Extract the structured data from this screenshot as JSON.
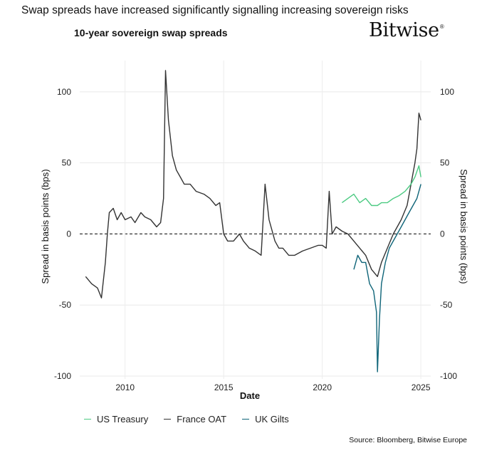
{
  "headline": "Swap spreads have increased significantly signalling increasing sovereign risks",
  "subtitle": "10-year sovereign swap spreads",
  "brand": "Bitwise",
  "brand_mark": "®",
  "source": "Source: Bloomberg, Bitwise Europe",
  "chart_data": {
    "type": "line",
    "title": "10-year sovereign swap spreads",
    "xlabel": "Date",
    "ylabel": "Spread in basis points (bps)",
    "ylabel_right": "Spread in basis points (bps)",
    "xlim": [
      2007.7,
      2025.5
    ],
    "ylim": [
      -102,
      122
    ],
    "x_ticks": [
      2010,
      2015,
      2020,
      2025
    ],
    "y_ticks": [
      -100,
      -50,
      0,
      50,
      100
    ],
    "zero_line": "dashed",
    "grid": true,
    "legend_position": "bottom",
    "series": [
      {
        "name": "France OAT",
        "color": "#333333",
        "x": [
          2008.0,
          2008.3,
          2008.6,
          2008.8,
          2009.0,
          2009.1,
          2009.2,
          2009.4,
          2009.6,
          2009.8,
          2010.0,
          2010.3,
          2010.5,
          2010.8,
          2011.0,
          2011.3,
          2011.6,
          2011.8,
          2011.95,
          2012.05,
          2012.2,
          2012.4,
          2012.6,
          2012.8,
          2013.0,
          2013.3,
          2013.6,
          2014.0,
          2014.3,
          2014.6,
          2014.8,
          2015.0,
          2015.2,
          2015.5,
          2015.8,
          2016.0,
          2016.3,
          2016.6,
          2016.9,
          2017.0,
          2017.1,
          2017.3,
          2017.6,
          2017.8,
          2018.0,
          2018.3,
          2018.6,
          2019.0,
          2019.4,
          2019.8,
          2020.0,
          2020.2,
          2020.35,
          2020.5,
          2020.7,
          2021.0,
          2021.3,
          2021.6,
          2021.9,
          2022.2,
          2022.5,
          2022.8,
          2023.0,
          2023.3,
          2023.6,
          2024.0,
          2024.3,
          2024.5,
          2024.7,
          2024.8,
          2024.9,
          2025.0
        ],
        "values": [
          -30,
          -35,
          -38,
          -45,
          -20,
          0,
          15,
          18,
          10,
          15,
          10,
          12,
          8,
          15,
          12,
          10,
          5,
          8,
          25,
          115,
          80,
          55,
          45,
          40,
          35,
          35,
          30,
          28,
          25,
          20,
          22,
          0,
          -5,
          -5,
          0,
          -5,
          -10,
          -12,
          -15,
          10,
          35,
          10,
          -5,
          -10,
          -10,
          -15,
          -15,
          -12,
          -10,
          -8,
          -8,
          -10,
          30,
          0,
          5,
          2,
          0,
          -5,
          -10,
          -15,
          -25,
          -30,
          -20,
          -10,
          0,
          10,
          20,
          35,
          50,
          60,
          85,
          80
        ]
      },
      {
        "name": "US Treasury",
        "color": "#4cca82",
        "x": [
          2021.0,
          2021.3,
          2021.6,
          2021.9,
          2022.2,
          2022.5,
          2022.8,
          2023.0,
          2023.3,
          2023.6,
          2023.9,
          2024.2,
          2024.5,
          2024.7,
          2024.9,
          2025.0
        ],
        "values": [
          22,
          25,
          28,
          22,
          25,
          20,
          20,
          22,
          22,
          25,
          27,
          30,
          35,
          40,
          48,
          40
        ]
      },
      {
        "name": "UK Gilts",
        "color": "#0e6478",
        "x": [
          2021.6,
          2021.8,
          2022.0,
          2022.2,
          2022.4,
          2022.6,
          2022.75,
          2022.8,
          2022.9,
          2023.0,
          2023.2,
          2023.4,
          2023.6,
          2023.8,
          2024.0,
          2024.2,
          2024.4,
          2024.6,
          2024.8,
          2025.0
        ],
        "values": [
          -25,
          -15,
          -20,
          -20,
          -35,
          -40,
          -55,
          -97,
          -60,
          -35,
          -20,
          -10,
          -5,
          0,
          5,
          10,
          15,
          20,
          25,
          35
        ]
      }
    ]
  }
}
